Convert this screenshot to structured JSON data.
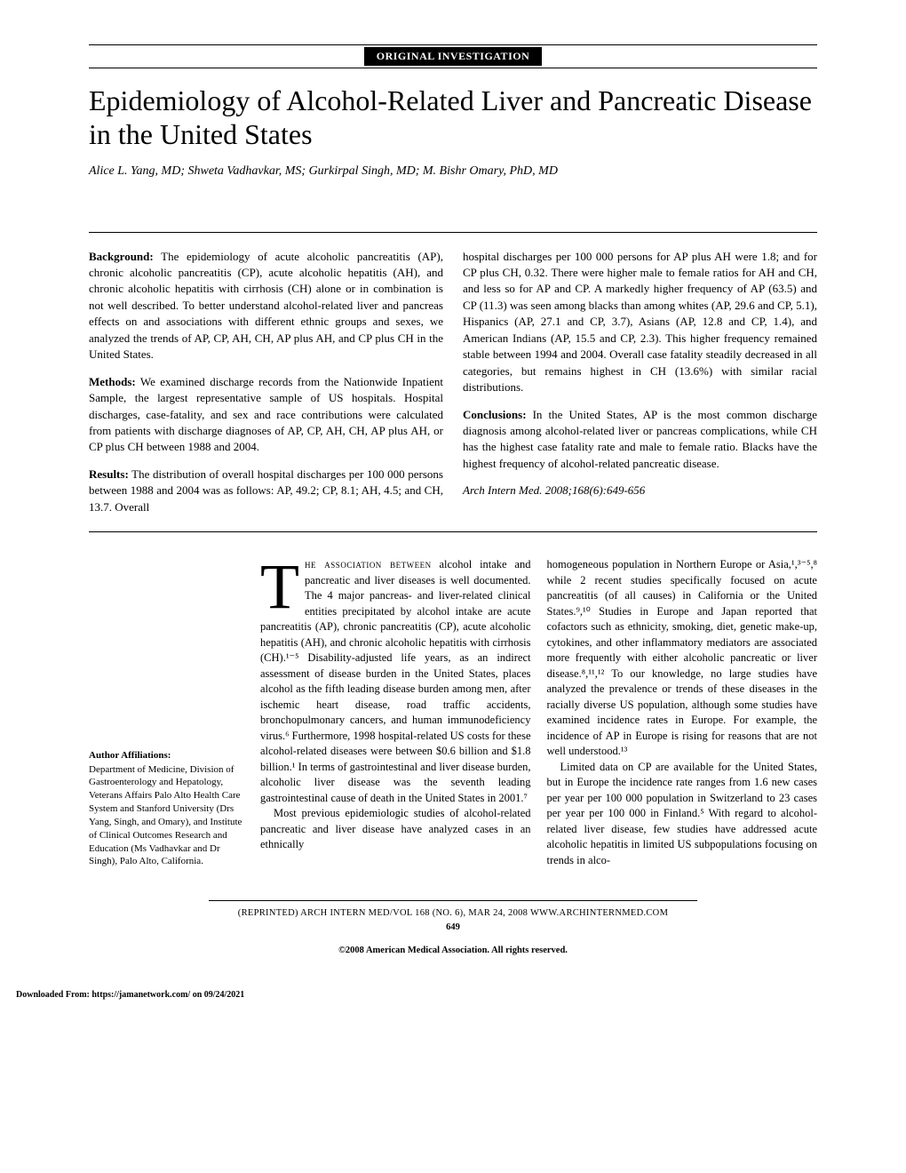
{
  "header": {
    "section_label": "ORIGINAL INVESTIGATION"
  },
  "title": "Epidemiology of Alcohol-Related Liver and Pancreatic Disease in the United States",
  "authors": "Alice L. Yang, MD; Shweta Vadhavkar, MS; Gurkirpal Singh, MD; M. Bishr Omary, PhD, MD",
  "abstract": {
    "left": {
      "background_label": "Background:",
      "background": " The epidemiology of acute alcoholic pancreatitis (AP), chronic alcoholic pancreatitis (CP), acute alcoholic hepatitis (AH), and chronic alcoholic hepatitis with cirrhosis (CH) alone or in combination is not well described. To better understand alcohol-related liver and pancreas effects on and associations with different ethnic groups and sexes, we analyzed the trends of AP, CP, AH, CH, AP plus AH, and CP plus CH in the United States.",
      "methods_label": "Methods:",
      "methods": " We examined discharge records from the Nationwide Inpatient Sample, the largest representative sample of US hospitals. Hospital discharges, case-fatality, and sex and race contributions were calculated from patients with discharge diagnoses of AP, CP, AH, CH, AP plus AH, or CP plus CH between 1988 and 2004.",
      "results_label": "Results:",
      "results": " The distribution of overall hospital discharges per 100 000 persons between 1988 and 2004 was as follows: AP, 49.2; CP, 8.1; AH, 4.5; and CH, 13.7. Overall"
    },
    "right": {
      "continuation": "hospital discharges per 100 000 persons for AP plus AH were 1.8; and for CP plus CH, 0.32. There were higher male to female ratios for AH and CH, and less so for AP and CP. A markedly higher frequency of AP (63.5) and CP (11.3) was seen among blacks than among whites (AP, 29.6 and CP, 5.1), Hispanics (AP, 27.1 and CP, 3.7), Asians (AP, 12.8 and CP, 1.4), and American Indians (AP, 15.5 and CP, 2.3). This higher frequency remained stable between 1994 and 2004. Overall case fatality steadily decreased in all categories, but remains highest in CH (13.6%) with similar racial distributions.",
      "conclusions_label": "Conclusions:",
      "conclusions": " In the United States, AP is the most common discharge diagnosis among alcohol-related liver or pancreas complications, while CH has the highest case fatality rate and male to female ratio. Blacks have the highest frequency of alcohol-related pancreatic disease.",
      "citation": "Arch Intern Med. 2008;168(6):649-656"
    }
  },
  "affiliations": {
    "heading": "Author Affiliations:",
    "text": "Department of Medicine, Division of Gastroenterology and Hepatology, Veterans Affairs Palo Alto Health Care System and Stanford University (Drs Yang, Singh, and Omary), and Institute of Clinical Outcomes Research and Education (Ms Vadhavkar and Dr Singh), Palo Alto, California."
  },
  "body": {
    "col1": {
      "dropcap": "T",
      "lead_smallcaps": "he association between",
      "p1_rest": " alcohol intake and pancreatic and liver diseases is well documented. The 4 major pancreas- and liver-related clinical entities precipitated by alcohol intake are acute pancreatitis (AP), chronic pancreatitis (CP), acute alcoholic hepatitis (AH), and chronic alcoholic hepatitis with cirrhosis (CH).¹⁻⁵ Disability-adjusted life years, as an indirect assessment of disease burden in the United States, places alcohol as the fifth leading disease burden among men, after ischemic heart disease, road traffic accidents, bronchopulmonary cancers, and human immunodeficiency virus.⁶ Furthermore, 1998 hospital-related US costs for these alcohol-related diseases were between $0.6 billion and $1.8 billion.¹ In terms of gastrointestinal and liver disease burden, alcoholic liver disease was the seventh leading gastrointestinal cause of death in the United States in 2001.⁷",
      "p2": "Most previous epidemiologic studies of alcohol-related pancreatic and liver disease have analyzed cases in an ethnically"
    },
    "col2": {
      "p1": "homogeneous population in Northern Europe or Asia,¹,³⁻⁵,⁸ while 2 recent studies specifically focused on acute pancreatitis (of all causes) in California or the United States.⁹,¹⁰ Studies in Europe and Japan reported that cofactors such as ethnicity, smoking, diet, genetic make-up, cytokines, and other inflammatory mediators are associated more frequently with either alcoholic pancreatic or liver disease.⁸,¹¹,¹² To our knowledge, no large studies have analyzed the prevalence or trends of these diseases in the racially diverse US population, although some studies have examined incidence rates in Europe. For example, the incidence of AP in Europe is rising for reasons that are not well understood.¹³",
      "p2": "Limited data on CP are available for the United States, but in Europe the incidence rate ranges from 1.6 new cases per year per 100 000 population in Switzerland to 23 cases per year per 100 000 in Finland.⁵ With regard to alcohol-related liver disease, few studies have addressed acute alcoholic hepatitis in limited US subpopulations focusing on trends in alco-"
    }
  },
  "footer": {
    "line1": "(REPRINTED) ARCH INTERN MED/VOL 168 (NO. 6), MAR 24, 2008    WWW.ARCHINTERNMED.COM",
    "page": "649",
    "copyright": "©2008 American Medical Association. All rights reserved."
  },
  "download": "Downloaded From: https://jamanetwork.com/ on 09/24/2021"
}
